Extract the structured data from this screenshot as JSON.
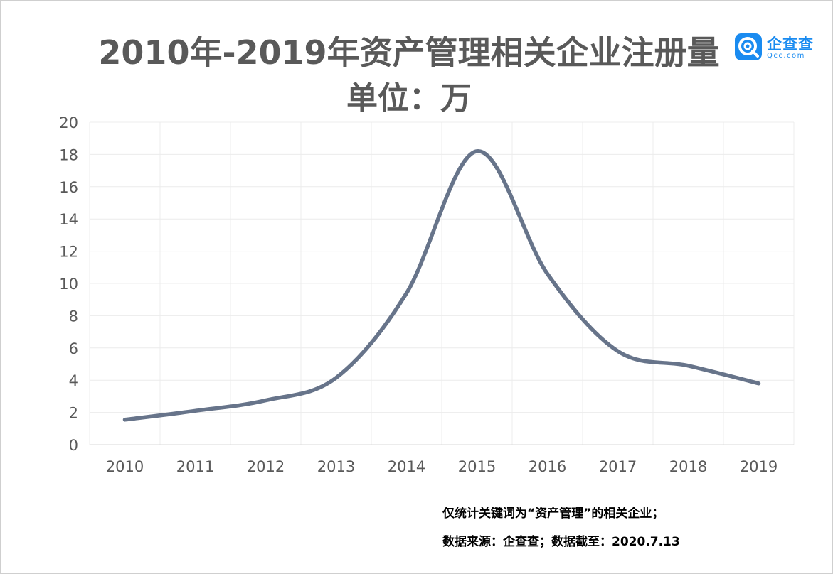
{
  "title_line1": "2010年-2019年资产管理相关企业注册量",
  "title_line2": "单位：万",
  "logo": {
    "name": "企查查",
    "domain": "Qcc.com",
    "color": "#1a8bf0"
  },
  "notes": [
    "仅统计关键词为“资产管理”的相关企业；",
    "数据来源：企查查；数据截至：2020.7.13"
  ],
  "chart_data": {
    "type": "line",
    "title": "2010年-2019年资产管理相关企业注册量",
    "subtitle": "单位：万",
    "xlabel": "",
    "ylabel": "",
    "categories": [
      "2010",
      "2011",
      "2012",
      "2013",
      "2014",
      "2015",
      "2016",
      "2017",
      "2018",
      "2019"
    ],
    "series": [
      {
        "values": [
          1.55,
          2.1,
          2.75,
          4.15,
          9.4,
          18.2,
          10.6,
          5.8,
          4.9,
          3.8
        ],
        "color": "#67748a"
      }
    ],
    "ylim": [
      0,
      20
    ],
    "yticks": [
      "0",
      "2",
      "4",
      "6",
      "8",
      "10",
      "12",
      "14",
      "16",
      "18",
      "20"
    ],
    "grid": true,
    "smooth": true,
    "legend": "none"
  }
}
